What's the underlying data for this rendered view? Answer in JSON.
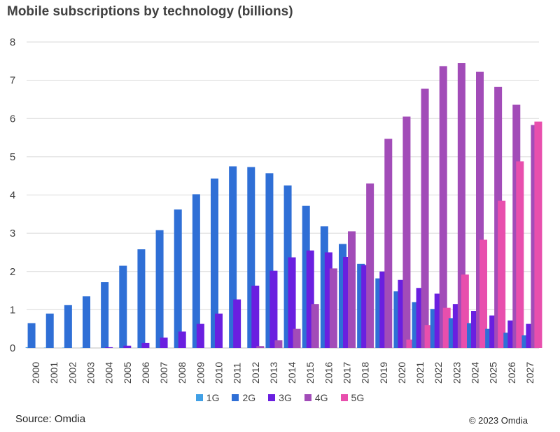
{
  "title": "Mobile subscriptions by technology (billions)",
  "source": "Source: Omdia",
  "copyright": "© 2023 Omdia",
  "chart_data": {
    "type": "bar",
    "title": "Mobile subscriptions by technology (billions)",
    "xlabel": "",
    "ylabel": "",
    "ylim": [
      0,
      8
    ],
    "yticks": [
      0,
      1,
      2,
      3,
      4,
      5,
      6,
      7,
      8
    ],
    "grid": true,
    "legend_position": "bottom",
    "categories": [
      "2000",
      "2001",
      "2002",
      "2003",
      "2004",
      "2005",
      "2006",
      "2007",
      "2008",
      "2009",
      "2010",
      "2011",
      "2012",
      "2013",
      "2014",
      "2015",
      "2016",
      "2017",
      "2018",
      "2019",
      "2020",
      "2021",
      "2022",
      "2023",
      "2024",
      "2025",
      "2026",
      "2027"
    ],
    "series": [
      {
        "name": "1G",
        "color": "#41a0e6",
        "values": [
          0.02,
          0.01,
          0.01,
          0.01,
          0,
          0,
          0,
          0,
          0,
          0,
          0,
          0,
          0,
          0,
          0,
          0,
          0,
          0,
          0,
          0,
          0,
          0,
          0,
          0,
          0,
          0,
          0,
          0
        ]
      },
      {
        "name": "2G",
        "color": "#2f6fd6",
        "values": [
          0.65,
          0.9,
          1.12,
          1.35,
          1.72,
          2.15,
          2.58,
          3.08,
          3.62,
          4.02,
          4.43,
          4.75,
          4.73,
          4.57,
          4.25,
          3.72,
          3.18,
          2.72,
          2.2,
          1.82,
          1.48,
          1.2,
          1.02,
          0.78,
          0.65,
          0.5,
          0.4,
          0.33
        ]
      },
      {
        "name": "3G",
        "color": "#6a1fe0",
        "values": [
          0,
          0,
          0,
          0,
          0.02,
          0.06,
          0.13,
          0.27,
          0.43,
          0.63,
          0.9,
          1.27,
          1.63,
          2.02,
          2.37,
          2.55,
          2.5,
          2.38,
          2.17,
          2.0,
          1.78,
          1.57,
          1.42,
          1.15,
          0.97,
          0.85,
          0.72,
          0.63
        ]
      },
      {
        "name": "4G",
        "color": "#a24cb8",
        "values": [
          0,
          0,
          0,
          0,
          0,
          0,
          0,
          0,
          0,
          0,
          0,
          0,
          0.05,
          0.2,
          0.5,
          1.15,
          2.08,
          3.05,
          4.3,
          5.47,
          6.05,
          6.78,
          7.37,
          7.45,
          7.22,
          6.83,
          6.36,
          5.83
        ]
      },
      {
        "name": "5G",
        "color": "#e84fad",
        "values": [
          0,
          0,
          0,
          0,
          0,
          0,
          0,
          0,
          0,
          0,
          0,
          0,
          0,
          0,
          0,
          0,
          0,
          0,
          0,
          0,
          0.22,
          0.6,
          1.05,
          1.92,
          2.83,
          3.85,
          4.88,
          5.92
        ]
      }
    ]
  }
}
